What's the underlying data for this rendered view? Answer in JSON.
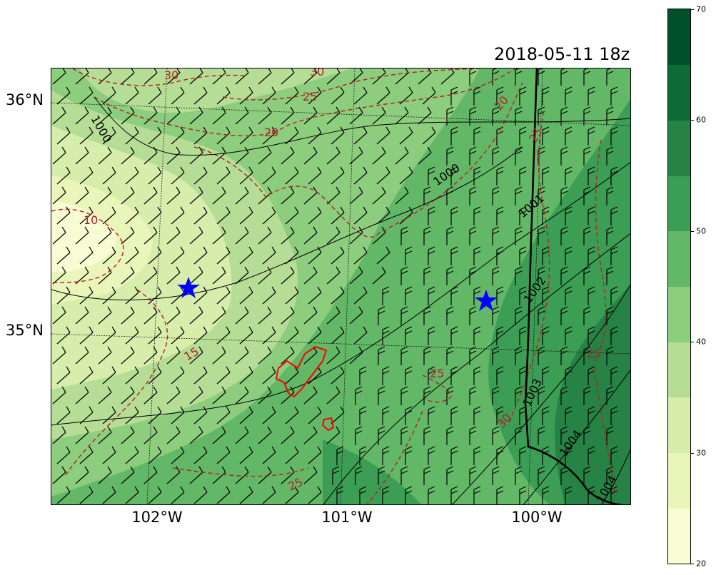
{
  "title": "2018-05-11 18z",
  "map": {
    "lat_labels": [
      "36°N",
      "35°N"
    ],
    "lon_labels": [
      "102°W",
      "101°W",
      "100°W"
    ],
    "isobar_labels": [
      "1000",
      "1000",
      "1001",
      "1002",
      "1003",
      "1004",
      "1004"
    ],
    "dewpoint_contour_labels": [
      "30",
      "30",
      "25",
      "20",
      "20",
      "25",
      "10",
      "15",
      "25",
      "25",
      "30",
      "25"
    ],
    "markers": [
      {
        "name": "location-star-west",
        "color": "#0000ff"
      },
      {
        "name": "location-star-east",
        "color": "#0000ff"
      }
    ],
    "colors": {
      "isobar": "#000000",
      "dewpoint_contour": "#b22222",
      "fire_perimeter": "#ff0000",
      "dryline": "#000000",
      "star": "#0000ff"
    }
  },
  "colorbar": {
    "ticks": [
      "20",
      "30",
      "40",
      "50",
      "60",
      "70"
    ],
    "levels": [
      20,
      25,
      30,
      35,
      40,
      45,
      50,
      55,
      60,
      65,
      70
    ],
    "colors": [
      "#f7fcd2",
      "#e9f5b9",
      "#d6edab",
      "#b5dd96",
      "#8ccd7e",
      "#62b867",
      "#3c9e54",
      "#268245",
      "#0f6b36",
      "#00512a"
    ]
  }
}
